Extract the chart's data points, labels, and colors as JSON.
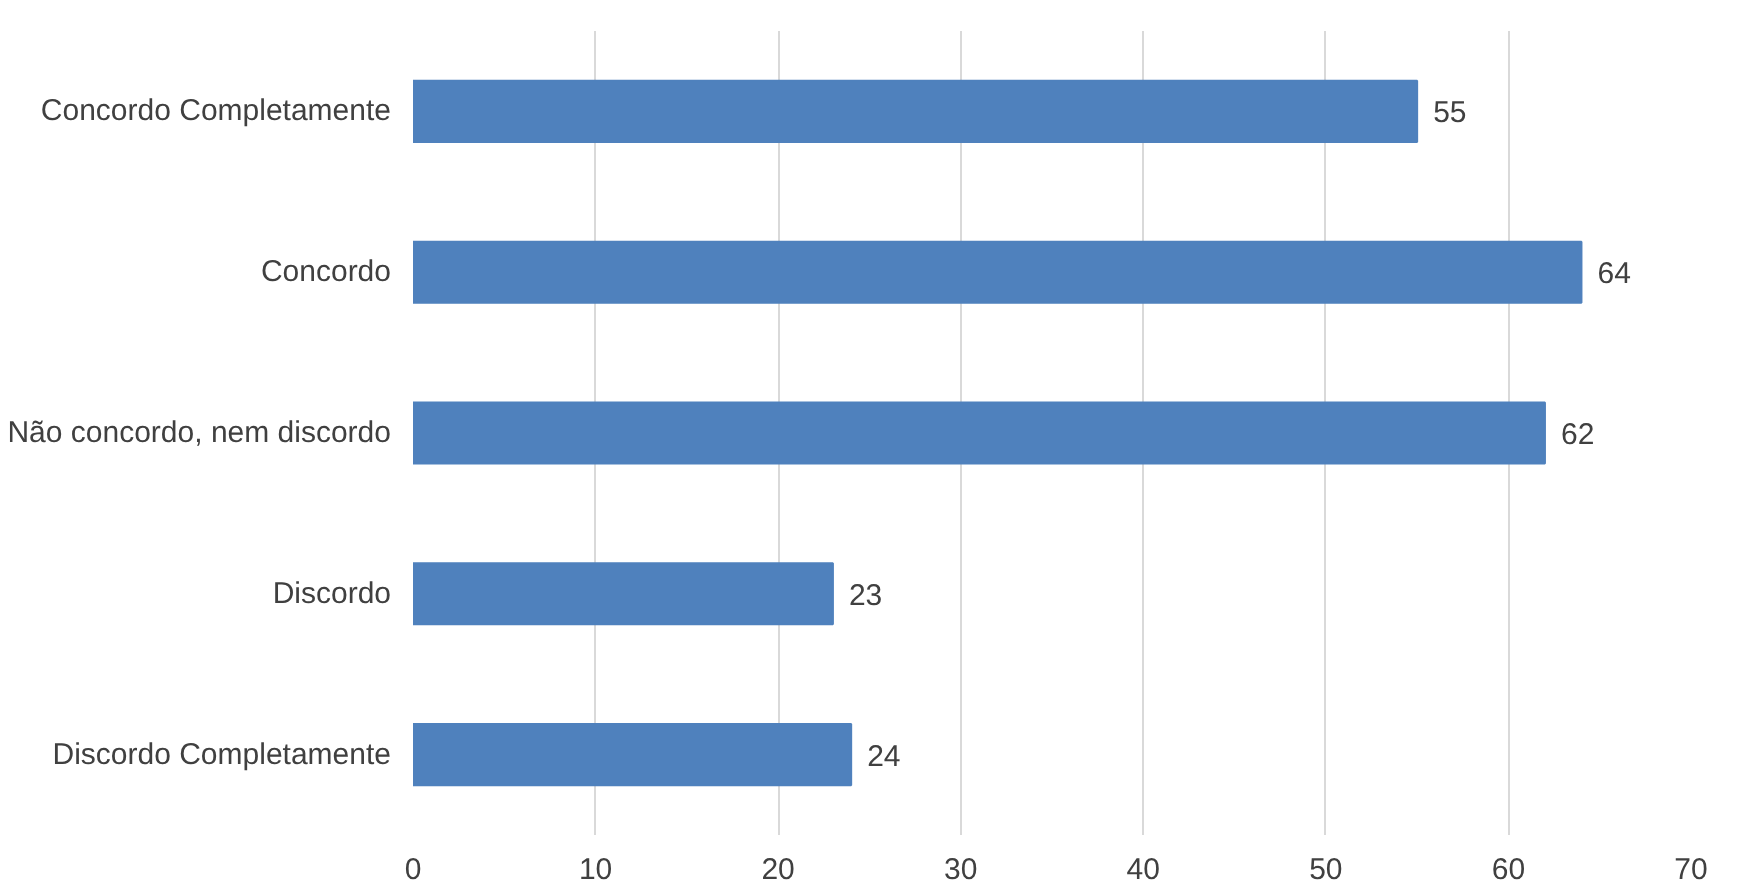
{
  "chart_data": {
    "type": "bar",
    "orientation": "horizontal",
    "categories": [
      "Concordo Completamente",
      "Concordo",
      "Não concordo, nem discordo",
      "Discordo",
      "Discordo Completamente"
    ],
    "values": [
      55,
      64,
      62,
      23,
      24
    ],
    "color": "#4f81bd",
    "xlim": [
      0,
      70
    ],
    "xticks": [
      0,
      10,
      20,
      30,
      40,
      50,
      60,
      70
    ],
    "grid": "x",
    "data_labels": true
  }
}
